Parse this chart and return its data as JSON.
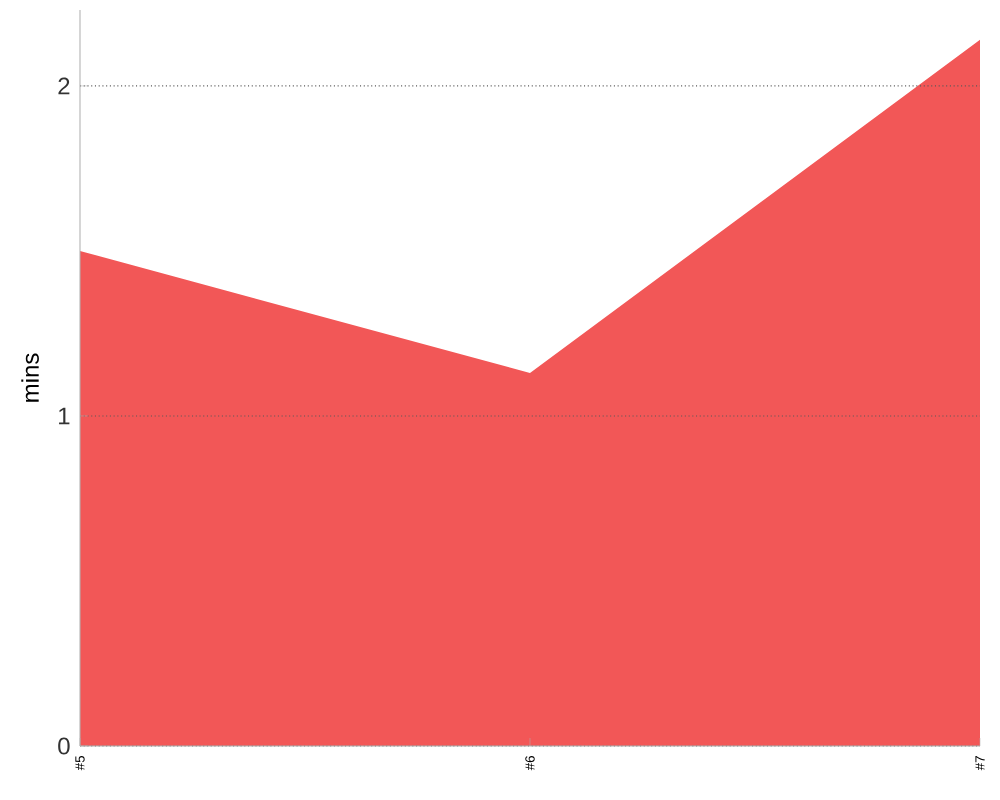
{
  "chart_data": {
    "type": "area",
    "ylabel": "mins",
    "categories": [
      "#5",
      "#6",
      "#7"
    ],
    "values": [
      1.5,
      1.13,
      2.14
    ],
    "color": "#f25757",
    "ylim": [
      0,
      2.23
    ],
    "yticks": [
      0,
      1,
      2
    ],
    "grid": "y"
  }
}
